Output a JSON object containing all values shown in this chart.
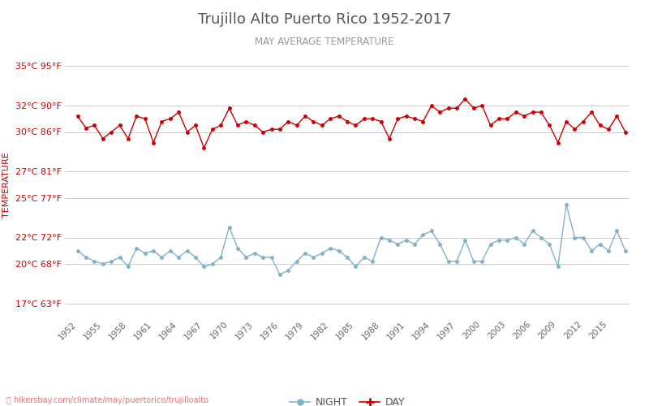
{
  "title": "Trujillo Alto Puerto Rico 1952-2017",
  "subtitle": "MAY AVERAGE TEMPERATURE",
  "ylabel": "TEMPERATURE",
  "watermark": "hikersbay.com/climate/may/puertorico/trujilloalto",
  "years": [
    1952,
    1953,
    1954,
    1955,
    1956,
    1957,
    1958,
    1959,
    1960,
    1961,
    1962,
    1963,
    1964,
    1965,
    1966,
    1967,
    1968,
    1969,
    1970,
    1971,
    1972,
    1973,
    1974,
    1975,
    1976,
    1977,
    1978,
    1979,
    1980,
    1981,
    1982,
    1983,
    1984,
    1985,
    1986,
    1987,
    1988,
    1989,
    1990,
    1991,
    1992,
    1993,
    1994,
    1995,
    1996,
    1997,
    1998,
    1999,
    2000,
    2001,
    2002,
    2003,
    2004,
    2005,
    2006,
    2007,
    2008,
    2009,
    2010,
    2011,
    2012,
    2013,
    2014,
    2015,
    2016,
    2017
  ],
  "day_temps": [
    31.2,
    30.3,
    30.5,
    29.5,
    30.0,
    30.5,
    29.5,
    31.2,
    31.0,
    29.2,
    30.8,
    31.0,
    31.5,
    30.0,
    30.5,
    28.8,
    30.2,
    30.5,
    31.8,
    30.5,
    30.8,
    30.5,
    30.0,
    30.2,
    30.2,
    30.8,
    30.5,
    31.2,
    30.8,
    30.5,
    31.0,
    31.2,
    30.8,
    30.5,
    31.0,
    31.0,
    30.8,
    29.5,
    31.0,
    31.2,
    31.0,
    30.8,
    32.0,
    31.5,
    31.8,
    31.8,
    32.5,
    31.8,
    32.0,
    30.5,
    31.0,
    31.0,
    31.5,
    31.2,
    31.5,
    31.5,
    30.5,
    29.2,
    30.8,
    30.2,
    30.8,
    31.5,
    30.5,
    30.2,
    31.2,
    30.0
  ],
  "night_temps": [
    21.0,
    20.5,
    20.2,
    20.0,
    20.2,
    20.5,
    19.8,
    21.2,
    20.8,
    21.0,
    20.5,
    21.0,
    20.5,
    21.0,
    20.5,
    19.8,
    20.0,
    20.5,
    22.8,
    21.2,
    20.5,
    20.8,
    20.5,
    20.5,
    19.2,
    19.5,
    20.2,
    20.8,
    20.5,
    20.8,
    21.2,
    21.0,
    20.5,
    19.8,
    20.5,
    20.2,
    22.0,
    21.8,
    21.5,
    21.8,
    21.5,
    22.2,
    22.5,
    21.5,
    20.2,
    20.2,
    21.8,
    20.2,
    20.2,
    21.5,
    21.8,
    21.8,
    22.0,
    21.5,
    22.5,
    22.0,
    21.5,
    19.8,
    24.5,
    22.0,
    22.0,
    21.0,
    21.5,
    21.0,
    22.5,
    21.0
  ],
  "day_color": "#cc0000",
  "night_color": "#7fb3c8",
  "background_color": "#ffffff",
  "grid_color": "#cccccc",
  "title_color": "#555555",
  "subtitle_color": "#999999",
  "label_color": "#cc0000",
  "yticks_c": [
    17,
    20,
    22,
    25,
    27,
    30,
    32,
    35
  ],
  "yticks_f": [
    63,
    68,
    72,
    77,
    81,
    86,
    90,
    95
  ],
  "xtick_years": [
    1952,
    1955,
    1958,
    1961,
    1964,
    1967,
    1970,
    1973,
    1976,
    1979,
    1982,
    1985,
    1988,
    1991,
    1994,
    1997,
    2000,
    2003,
    2006,
    2009,
    2012,
    2015
  ],
  "ylim": [
    16,
    36
  ],
  "figsize": [
    8.0,
    5.0
  ],
  "dpi": 100
}
